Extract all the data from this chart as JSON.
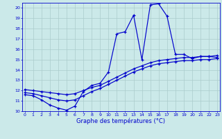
{
  "xlabel": "Graphe des températures (°C)",
  "bg_color": "#cbe9e9",
  "line_color": "#0000cc",
  "grid_color": "#aacccc",
  "ylim": [
    10,
    20.5
  ],
  "xlim": [
    -0.3,
    23.3
  ],
  "yticks": [
    10,
    11,
    12,
    13,
    14,
    15,
    16,
    17,
    18,
    19,
    20
  ],
  "xticks": [
    0,
    1,
    2,
    3,
    4,
    5,
    6,
    7,
    8,
    9,
    10,
    11,
    12,
    13,
    14,
    15,
    16,
    17,
    18,
    19,
    20,
    21,
    22,
    23
  ],
  "line1_x": [
    0,
    1,
    2,
    3,
    4,
    5,
    6,
    7,
    8,
    9,
    10,
    11,
    12,
    13,
    14,
    15,
    16,
    17,
    18,
    19,
    20,
    21,
    22,
    23
  ],
  "line1_y": [
    11.6,
    11.5,
    11.1,
    10.6,
    10.3,
    10.1,
    10.5,
    11.9,
    12.5,
    12.7,
    13.8,
    17.5,
    17.7,
    19.3,
    15.0,
    20.3,
    20.4,
    19.2,
    15.5,
    15.5,
    15.1,
    15.3,
    15.3,
    15.2
  ],
  "line2_x": [
    0,
    1,
    2,
    3,
    4,
    5,
    6,
    7,
    8,
    9,
    10,
    11,
    12,
    13,
    14,
    15,
    16,
    17,
    18,
    19,
    20,
    21,
    22,
    23
  ],
  "line2_y": [
    11.8,
    11.7,
    11.5,
    11.3,
    11.1,
    11.0,
    11.1,
    11.5,
    11.9,
    12.2,
    12.6,
    13.0,
    13.4,
    13.8,
    14.1,
    14.4,
    14.6,
    14.7,
    14.8,
    14.9,
    14.9,
    15.0,
    15.0,
    15.1
  ],
  "line3_x": [
    0,
    1,
    2,
    3,
    4,
    5,
    6,
    7,
    8,
    9,
    10,
    11,
    12,
    13,
    14,
    15,
    16,
    17,
    18,
    19,
    20,
    21,
    22,
    23
  ],
  "line3_y": [
    12.1,
    12.0,
    11.9,
    11.8,
    11.7,
    11.6,
    11.7,
    12.0,
    12.3,
    12.5,
    12.9,
    13.3,
    13.7,
    14.1,
    14.4,
    14.7,
    14.9,
    15.0,
    15.1,
    15.2,
    15.2,
    15.3,
    15.3,
    15.4
  ]
}
